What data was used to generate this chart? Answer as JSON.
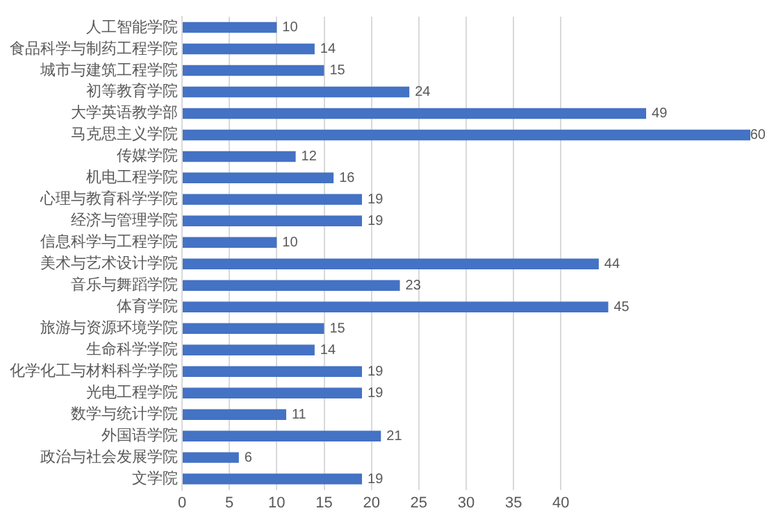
{
  "chart_data": {
    "type": "bar",
    "orientation": "horizontal",
    "categories": [
      "人工智能学院",
      "食品科学与制药工程学院",
      "城市与建筑工程学院",
      "初等教育学院",
      "大学英语教学部",
      "马克思主义学院",
      "传媒学院",
      "机电工程学院",
      "心理与教育科学学院",
      "经济与管理学院",
      "信息科学与工程学院",
      "美术与艺术设计学院",
      "音乐与舞蹈学院",
      "体育学院",
      "旅游与资源环境学院",
      "生命科学学院",
      "化学化工与材料科学学院",
      "光电工程学院",
      "数学与统计学院",
      "外国语学院",
      "政治与社会发展学院",
      "文学院"
    ],
    "values": [
      10,
      14,
      15,
      24,
      49,
      60,
      12,
      16,
      19,
      19,
      10,
      44,
      23,
      45,
      15,
      14,
      19,
      19,
      11,
      21,
      6,
      19
    ],
    "color": "#4472c4",
    "xlim": [
      0,
      60
    ],
    "xticks": [
      0,
      5,
      10,
      15,
      20,
      25,
      30,
      35,
      40
    ],
    "grid": "x",
    "data_labels": true,
    "legend": false
  }
}
